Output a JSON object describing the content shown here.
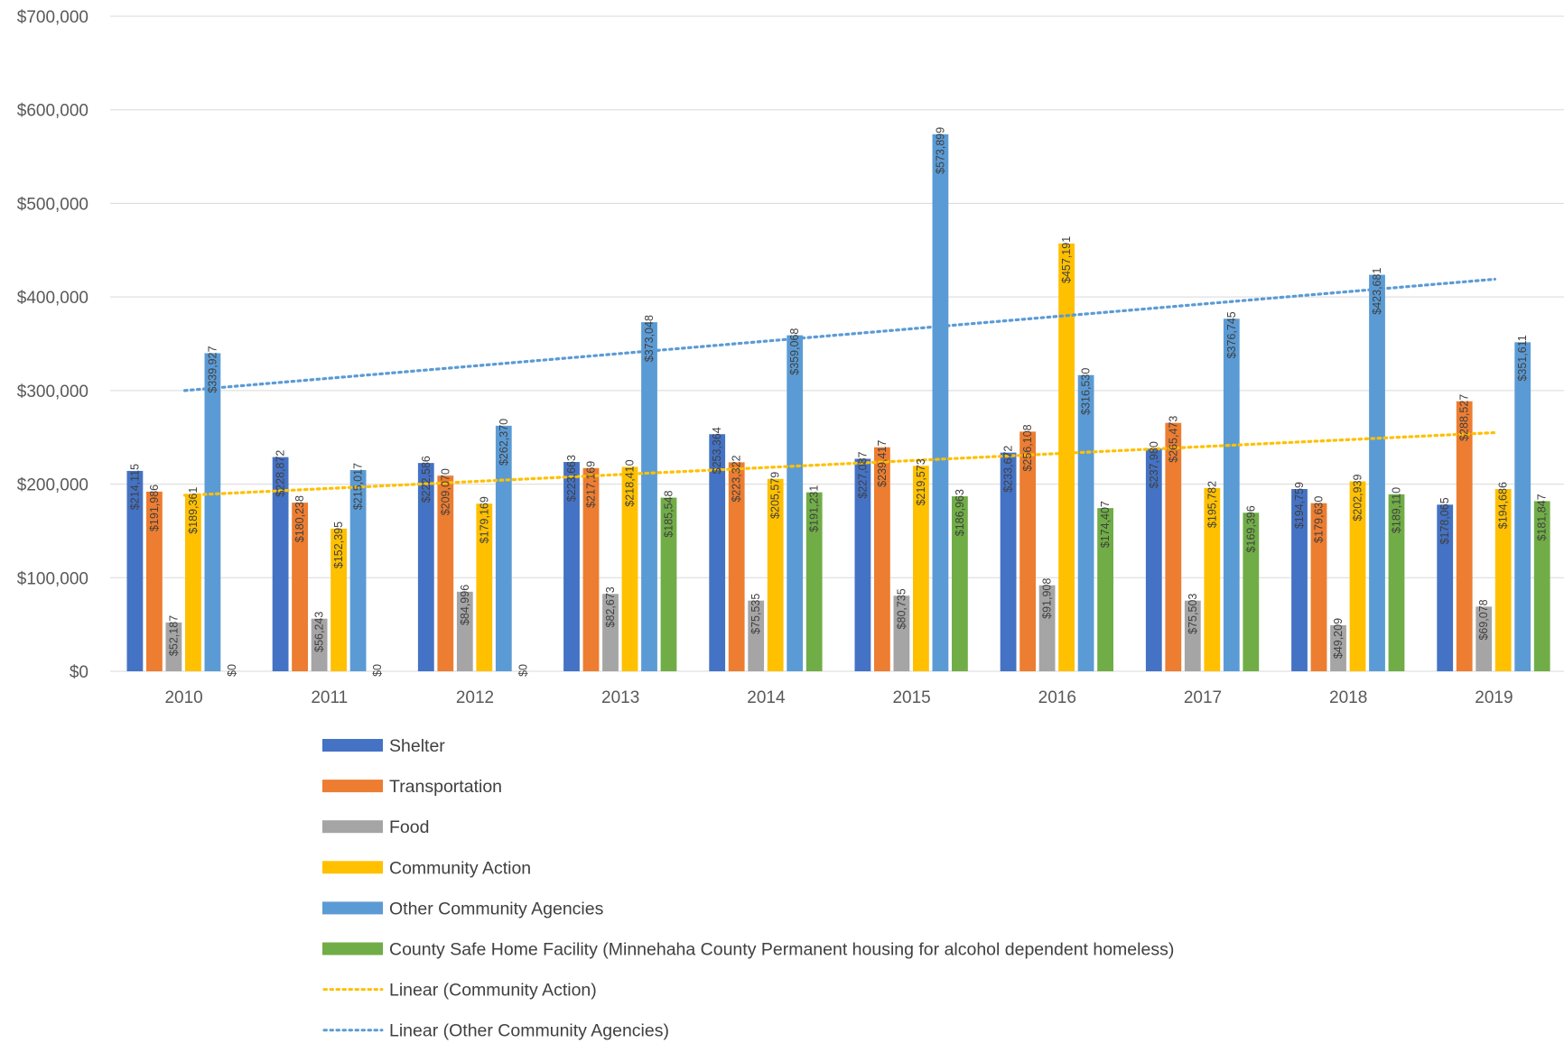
{
  "chart_data": {
    "type": "bar",
    "title": "",
    "xlabel": "",
    "ylabel": "",
    "ylim": [
      0,
      700000
    ],
    "yticks": [
      "$0",
      "$100,000",
      "$200,000",
      "$300,000",
      "$400,000",
      "$500,000",
      "$600,000",
      "$700,000"
    ],
    "gridlines": true,
    "legend_position": "bottom",
    "categories": [
      "2010",
      "2011",
      "2012",
      "2013",
      "2014",
      "2015",
      "2016",
      "2017",
      "2018",
      "2019"
    ],
    "series": [
      {
        "name": "Shelter",
        "color": "#4472C4",
        "values": [
          214115,
          228872,
          222586,
          223663,
          253364,
          227087,
          233672,
          237980,
          194759,
          178065
        ],
        "labels": [
          "$214,115",
          "$228,872",
          "$222,586",
          "$223,663",
          "$253,364",
          "$227,087",
          "$233,672",
          "$237,980",
          "$194,759",
          "$178,065"
        ]
      },
      {
        "name": "Transportation",
        "color": "#ED7D31",
        "values": [
          191986,
          180238,
          209070,
          217169,
          223322,
          239417,
          256108,
          265473,
          179630,
          288527
        ],
        "labels": [
          "$191,986",
          "$180,238",
          "$209,070",
          "$217,169",
          "$223,322",
          "$239,417",
          "$256,108",
          "$265,473",
          "$179,630",
          "$288,527"
        ]
      },
      {
        "name": "Food",
        "color": "#A5A5A5",
        "values": [
          52187,
          56243,
          84996,
          82673,
          75535,
          80735,
          91908,
          75503,
          49209,
          69078
        ],
        "labels": [
          "$52,187",
          "$56,243",
          "$84,996",
          "$82,673",
          "$75,535",
          "$80,735",
          "$91,908",
          "$75,503",
          "$49,209",
          "$69,078"
        ]
      },
      {
        "name": "Community Action",
        "color": "#FFC000",
        "values": [
          189361,
          152395,
          179169,
          218410,
          205579,
          219573,
          457191,
          195782,
          202939,
          194686
        ],
        "labels": [
          "$189,361",
          "$152,395",
          "$179,169",
          "$218,410",
          "$205,579",
          "$219,573",
          "$457,191",
          "$195,782",
          "$202,939",
          "$194,686"
        ]
      },
      {
        "name": "Other Community Agencies",
        "color": "#5B9BD5",
        "values": [
          339927,
          215017,
          262370,
          373048,
          359068,
          573899,
          316530,
          376745,
          423681,
          351611
        ],
        "labels": [
          "$339,927",
          "$215,017",
          "$262,370",
          "$373,048",
          "$359,068",
          "$573,899",
          "$316,530",
          "$376,745",
          "$423,681",
          "$351,611"
        ]
      },
      {
        "name": "County Safe Home Facility (Minnehaha County Permanent housing for alcohol dependent homeless)",
        "color": "#70AD47",
        "values": [
          0,
          0,
          0,
          185548,
          191231,
          186963,
          174407,
          169396,
          189110,
          181847
        ],
        "labels": [
          "$0",
          "$0",
          "$0",
          "$185,548",
          "$191,231",
          "$186,963",
          "$174,407",
          "$169,396",
          "$189,110",
          "$181,847"
        ]
      }
    ],
    "trendlines": [
      {
        "name": "Linear (Community Action)",
        "color": "#FFC000",
        "start": 188000,
        "end": 255000
      },
      {
        "name": "Linear (Other Community Agencies)",
        "color": "#5B9BD5",
        "start": 300000,
        "end": 419000
      }
    ]
  }
}
